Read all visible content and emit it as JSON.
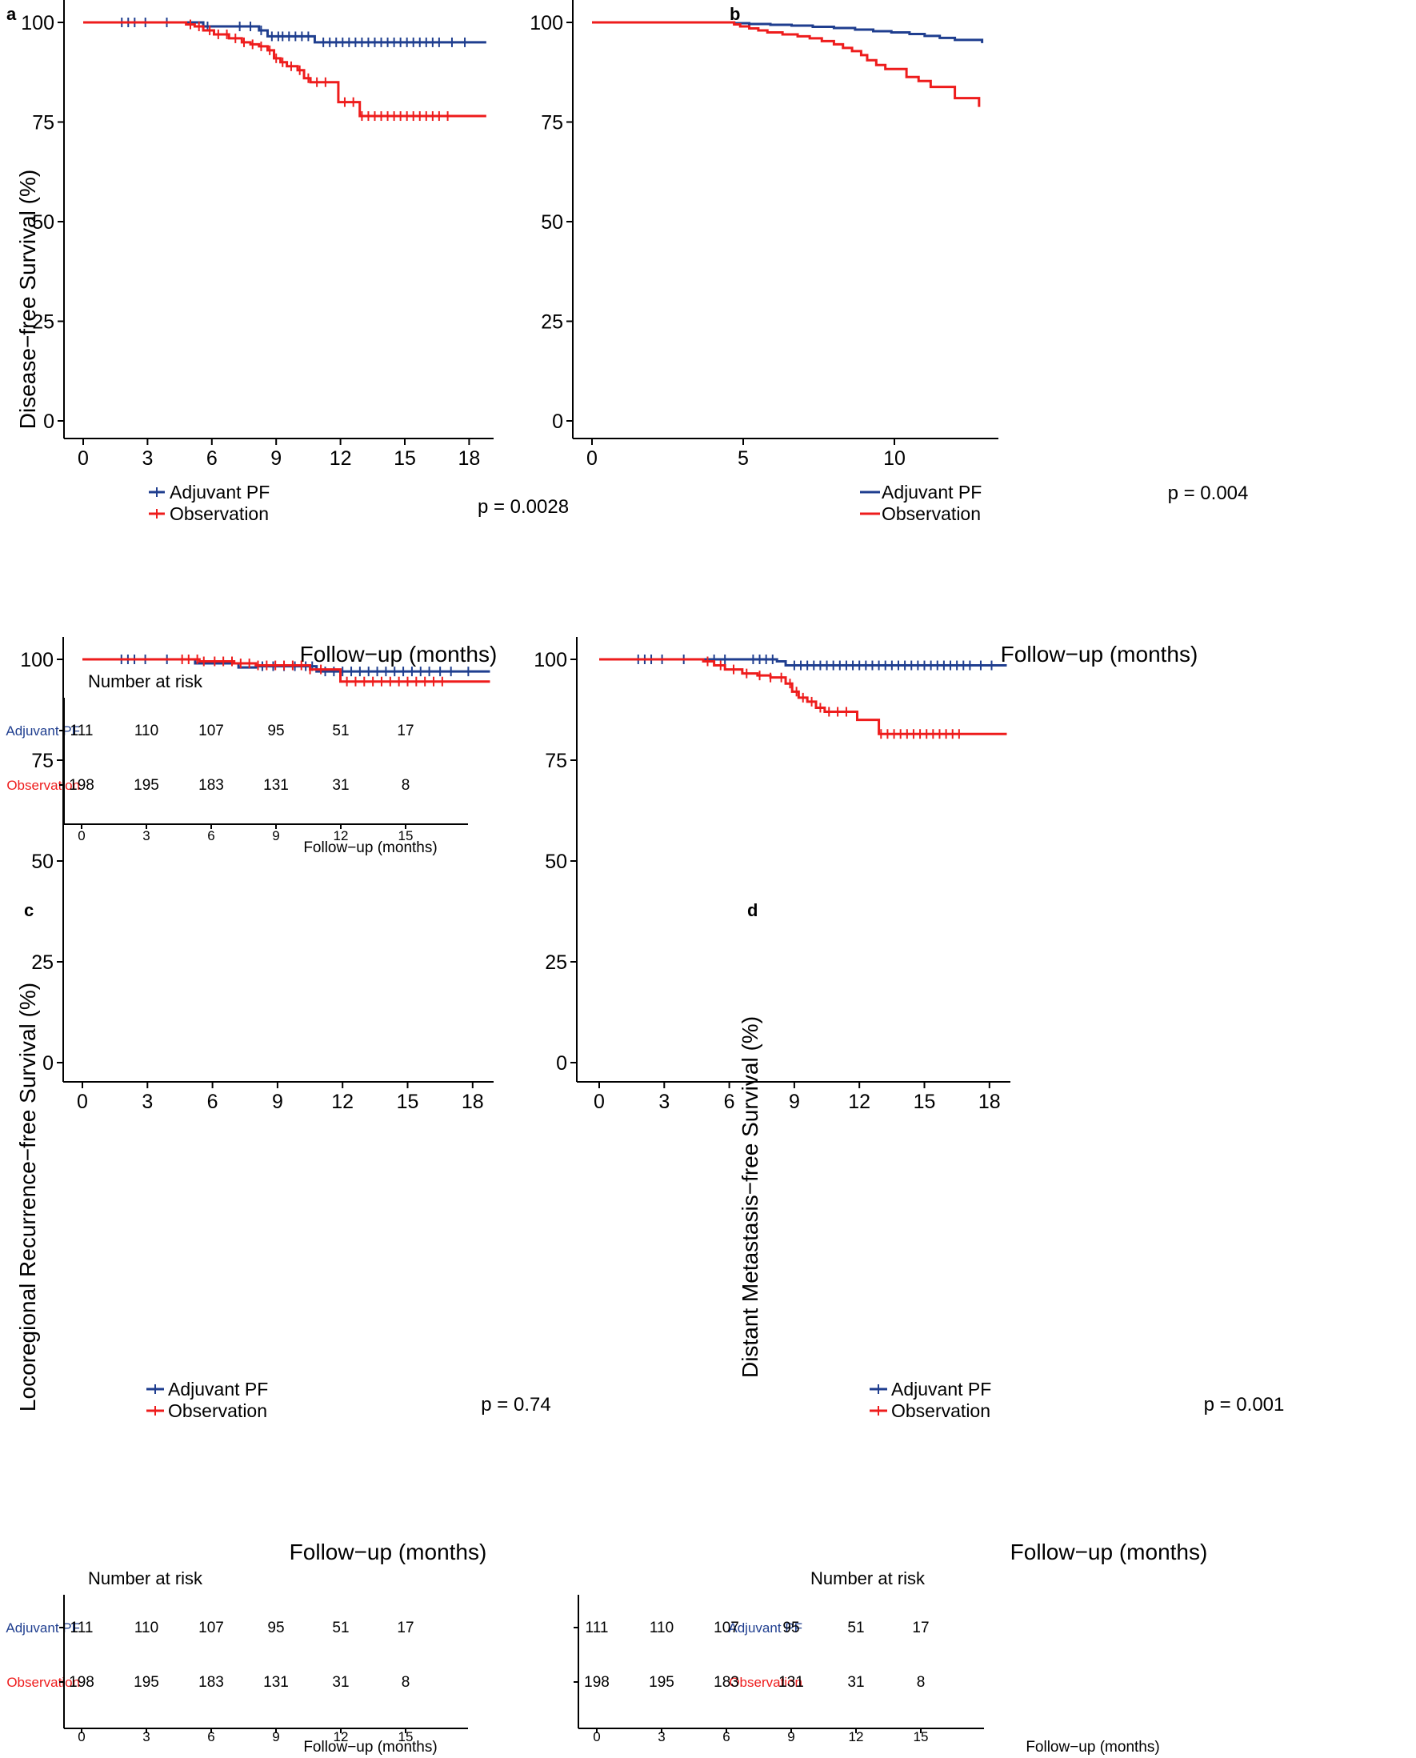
{
  "colors": {
    "adjuvant": "#1F3E8F",
    "observation": "#EE1C1C",
    "axis": "#000000"
  },
  "common": {
    "xlabel": "Follow−up (months)",
    "legend": [
      "Adjuvant PF",
      "Observation"
    ],
    "risk_title": "Number at risk",
    "risk_rows": [
      "Adjuvant PF",
      "Observation"
    ],
    "risk_xlabel": "Follow−up (months)"
  },
  "chart_data": [
    {
      "panel": "a",
      "type": "line",
      "title": "",
      "ylabel": "Disease−free Survival (%)",
      "xlabel": "Follow−up (months)",
      "xlim": [
        0,
        18.6
      ],
      "ylim": [
        0,
        100
      ],
      "xticks": [
        "0",
        "3",
        "6",
        "9",
        "12",
        "15",
        "18"
      ],
      "yticks": [
        "0",
        "25",
        "50",
        "75",
        "100"
      ],
      "pvalue": "p = 0.0028",
      "legend_marker": true,
      "series": [
        {
          "name": "Adjuvant PF",
          "color": "#1F3E8F",
          "steps": [
            [
              0,
              100
            ],
            [
              5.6,
              99
            ],
            [
              8.2,
              98
            ],
            [
              8.6,
              96.5
            ],
            [
              10.8,
              95
            ],
            [
              18.8,
              95
            ]
          ],
          "censor": [
            1.8,
            2.1,
            2.4,
            2.9,
            3.9,
            5.8,
            7.3,
            7.8,
            8.3,
            8.8,
            9.1,
            9.3,
            9.6,
            9.9,
            10.2,
            10.5,
            11.2,
            11.5,
            11.8,
            12.1,
            12.4,
            12.7,
            13.0,
            13.3,
            13.6,
            13.9,
            14.2,
            14.5,
            14.8,
            15.1,
            15.4,
            15.7,
            16.0,
            16.3,
            16.6,
            17.2,
            17.8
          ]
        },
        {
          "name": "Observation",
          "color": "#EE1C1C",
          "steps": [
            [
              0,
              100
            ],
            [
              4.8,
              99.5
            ],
            [
              5.2,
              99
            ],
            [
              5.6,
              98
            ],
            [
              6.1,
              97
            ],
            [
              6.8,
              96
            ],
            [
              7.4,
              95
            ],
            [
              7.8,
              94.5
            ],
            [
              8.2,
              94
            ],
            [
              8.6,
              93
            ],
            [
              8.9,
              91
            ],
            [
              9.2,
              90
            ],
            [
              9.5,
              89
            ],
            [
              10.0,
              88
            ],
            [
              10.3,
              86
            ],
            [
              10.6,
              85
            ],
            [
              11.9,
              80
            ],
            [
              12.9,
              76.5
            ],
            [
              18.8,
              76.5
            ]
          ],
          "censor": [
            5.0,
            5.4,
            5.9,
            6.3,
            6.7,
            7.1,
            7.5,
            7.9,
            8.3,
            8.7,
            9.0,
            9.3,
            9.7,
            10.1,
            10.5,
            10.9,
            11.3,
            12.2,
            12.6,
            13.0,
            13.3,
            13.6,
            13.9,
            14.2,
            14.5,
            14.8,
            15.1,
            15.4,
            15.7,
            16.0,
            16.3,
            16.6,
            17.0
          ]
        }
      ],
      "risk": {
        "title": "Number at risk",
        "times": [
          "0",
          "3",
          "6",
          "9",
          "12",
          "15"
        ],
        "adjuvant": [
          "111",
          "110",
          "107",
          "95",
          "51",
          "17"
        ],
        "observation": [
          "198",
          "195",
          "183",
          "131",
          "31",
          "8"
        ]
      }
    },
    {
      "panel": "b",
      "type": "line",
      "title": "",
      "ylabel": "",
      "xlabel": "Follow−up (months)",
      "xlim": [
        0,
        13.5
      ],
      "ylim": [
        0,
        100
      ],
      "xticks": [
        "0",
        "5",
        "10"
      ],
      "yticks": [
        "0",
        "25",
        "50",
        "75",
        "100"
      ],
      "pvalue": "p = 0.004",
      "legend_marker": false,
      "series": [
        {
          "name": "Adjuvant PF",
          "color": "#1F3E8F",
          "steps": [
            [
              0,
              100
            ],
            [
              4.7,
              99.8
            ],
            [
              5.2,
              99.6
            ],
            [
              5.9,
              99.4
            ],
            [
              6.6,
              99.2
            ],
            [
              7.3,
              98.9
            ],
            [
              8.0,
              98.6
            ],
            [
              8.7,
              98.2
            ],
            [
              9.3,
              97.8
            ],
            [
              9.9,
              97.5
            ],
            [
              10.5,
              97.1
            ],
            [
              11.0,
              96.6
            ],
            [
              11.5,
              96.1
            ],
            [
              12.0,
              95.6
            ],
            [
              12.9,
              95.2
            ],
            [
              12.9,
              94.8
            ]
          ],
          "censor": []
        },
        {
          "name": "Observation",
          "color": "#EE1C1C",
          "steps": [
            [
              0,
              100
            ],
            [
              4.7,
              99.5
            ],
            [
              4.9,
              99
            ],
            [
              5.2,
              98.5
            ],
            [
              5.5,
              98
            ],
            [
              5.8,
              97.5
            ],
            [
              6.3,
              97
            ],
            [
              6.8,
              96.5
            ],
            [
              7.2,
              96
            ],
            [
              7.6,
              95.3
            ],
            [
              8.0,
              94.5
            ],
            [
              8.3,
              93.6
            ],
            [
              8.6,
              92.8
            ],
            [
              8.9,
              91.8
            ],
            [
              9.1,
              90.5
            ],
            [
              9.4,
              89.3
            ],
            [
              9.7,
              88.3
            ],
            [
              10.4,
              86.3
            ],
            [
              10.8,
              85.3
            ],
            [
              11.2,
              83.8
            ],
            [
              12.0,
              81
            ],
            [
              12.7,
              81
            ],
            [
              12.8,
              78.8
            ]
          ],
          "censor": []
        }
      ]
    },
    {
      "panel": "c",
      "type": "line",
      "title": "",
      "ylabel": "Locoregional Recurrence−free Survival (%)",
      "xlabel": "Follow−up (months)",
      "xlim": [
        0,
        18.6
      ],
      "ylim": [
        0,
        100
      ],
      "xticks": [
        "0",
        "3",
        "6",
        "9",
        "12",
        "15",
        "18"
      ],
      "yticks": [
        "0",
        "25",
        "50",
        "75",
        "100"
      ],
      "pvalue": "p = 0.74",
      "legend_marker": true,
      "series": [
        {
          "name": "Adjuvant PF",
          "color": "#1F3E8F",
          "steps": [
            [
              0,
              100
            ],
            [
              5.2,
              99
            ],
            [
              7.2,
              98
            ],
            [
              8.0,
              98.3
            ],
            [
              10.8,
              97
            ],
            [
              18.8,
              97
            ]
          ],
          "censor": [
            1.8,
            2.1,
            2.4,
            2.9,
            3.9,
            8.3,
            8.8,
            9.3,
            9.8,
            10.3,
            10.6,
            11.2,
            11.6,
            12.0,
            12.4,
            12.8,
            13.2,
            13.6,
            14.0,
            14.4,
            14.8,
            15.2,
            15.6,
            16.0,
            16.5,
            17.0,
            17.8
          ]
        },
        {
          "name": "Observation",
          "color": "#EE1C1C",
          "steps": [
            [
              0,
              100
            ],
            [
              5.4,
              99.5
            ],
            [
              7.0,
              99
            ],
            [
              8.0,
              98.5
            ],
            [
              10.5,
              97.5
            ],
            [
              11.9,
              94.5
            ],
            [
              18.8,
              94.5
            ]
          ],
          "censor": [
            4.6,
            4.9,
            5.3,
            5.6,
            6.1,
            6.5,
            6.9,
            7.3,
            7.7,
            8.1,
            8.5,
            8.9,
            9.3,
            9.7,
            10.1,
            10.5,
            11.0,
            12.2,
            12.6,
            13.0,
            13.4,
            13.8,
            14.2,
            14.6,
            15.0,
            15.4,
            15.8,
            16.2,
            16.6
          ]
        }
      ],
      "risk": {
        "title": "Number at risk",
        "times": [
          "0",
          "3",
          "6",
          "9",
          "12",
          "15"
        ],
        "adjuvant": [
          "111",
          "110",
          "107",
          "95",
          "51",
          "17"
        ],
        "observation": [
          "198",
          "195",
          "183",
          "131",
          "31",
          "8"
        ]
      }
    },
    {
      "panel": "d",
      "type": "line",
      "title": "",
      "ylabel": "Distant Metastasis−free Survival (%)",
      "xlabel": "Follow−up (months)",
      "xlim": [
        0,
        18.6
      ],
      "ylim": [
        0,
        100
      ],
      "xticks": [
        "0",
        "3",
        "6",
        "9",
        "12",
        "15",
        "18"
      ],
      "yticks": [
        "0",
        "25",
        "50",
        "75",
        "100"
      ],
      "pvalue": "p = 0.001",
      "legend_marker": true,
      "series": [
        {
          "name": "Adjuvant PF",
          "color": "#1F3E8F",
          "steps": [
            [
              0,
              100
            ],
            [
              8.2,
              99.5
            ],
            [
              8.6,
              98.5
            ],
            [
              18.8,
              98.5
            ]
          ],
          "censor": [
            1.8,
            2.1,
            2.4,
            2.9,
            3.9,
            5.3,
            5.8,
            7.1,
            7.4,
            7.7,
            8.0,
            9.0,
            9.3,
            9.6,
            9.9,
            10.2,
            10.5,
            10.8,
            11.1,
            11.4,
            11.7,
            12.0,
            12.3,
            12.6,
            12.9,
            13.2,
            13.5,
            13.8,
            14.1,
            14.4,
            14.7,
            15.0,
            15.3,
            15.6,
            15.9,
            16.2,
            16.5,
            16.8,
            17.1,
            17.6,
            18.1
          ]
        },
        {
          "name": "Observation",
          "color": "#EE1C1C",
          "steps": [
            [
              0,
              100
            ],
            [
              4.8,
              99.5
            ],
            [
              5.3,
              98.5
            ],
            [
              5.8,
              97.5
            ],
            [
              6.6,
              96.5
            ],
            [
              7.3,
              96
            ],
            [
              7.9,
              95.5
            ],
            [
              8.6,
              94
            ],
            [
              8.9,
              92
            ],
            [
              9.2,
              90.5
            ],
            [
              9.6,
              89.5
            ],
            [
              10.0,
              88
            ],
            [
              10.4,
              87
            ],
            [
              11.9,
              85
            ],
            [
              12.9,
              81.5
            ],
            [
              18.8,
              81.5
            ]
          ],
          "censor": [
            5.0,
            5.6,
            6.2,
            6.8,
            7.4,
            7.9,
            8.4,
            8.8,
            9.1,
            9.4,
            9.8,
            10.2,
            10.6,
            11.0,
            11.4,
            13.0,
            13.3,
            13.6,
            13.9,
            14.2,
            14.5,
            14.8,
            15.1,
            15.4,
            15.7,
            16.0,
            16.3,
            16.6
          ]
        }
      ],
      "risk": {
        "title": "Number at risk",
        "times": [
          "0",
          "3",
          "6",
          "9",
          "12",
          "15"
        ],
        "adjuvant": [
          "111",
          "110",
          "107",
          "95",
          "51",
          "17"
        ],
        "observation": [
          "198",
          "195",
          "183",
          "131",
          "31",
          "8"
        ]
      }
    }
  ]
}
